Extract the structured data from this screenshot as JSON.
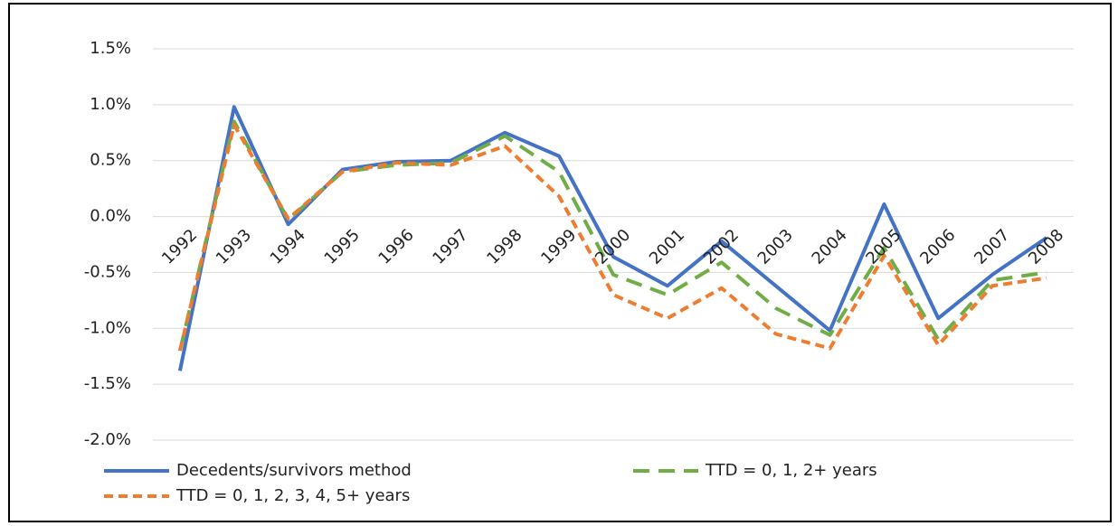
{
  "chart_data": {
    "type": "line",
    "categories": [
      "1992",
      "1993",
      "1994",
      "1995",
      "1996",
      "1997",
      "1998",
      "1999",
      "2000",
      "2001",
      "2002",
      "2003",
      "2004",
      "2005",
      "2006",
      "2007",
      "2008"
    ],
    "series": [
      {
        "name": "Decedents/survivors method",
        "color": "#4472c4",
        "dash": "solid",
        "values": [
          -1.38,
          0.98,
          -0.07,
          0.42,
          0.49,
          0.5,
          0.75,
          0.54,
          -0.36,
          -0.62,
          -0.22,
          -0.62,
          -1.02,
          0.11,
          -0.91,
          -0.52,
          -0.19
        ]
      },
      {
        "name": "TTD = 0, 1, 2+ years",
        "color": "#70ad47",
        "dash": "long",
        "values": [
          -1.2,
          0.85,
          -0.03,
          0.4,
          0.46,
          0.48,
          0.72,
          0.4,
          -0.52,
          -0.7,
          -0.41,
          -0.82,
          -1.06,
          -0.28,
          -1.1,
          -0.57,
          -0.5
        ]
      },
      {
        "name": "TTD = 0, 1, 2, 3, 4, 5+ years",
        "color": "#ed7d31",
        "dash": "short",
        "values": [
          -1.2,
          0.82,
          -0.02,
          0.4,
          0.48,
          0.46,
          0.63,
          0.18,
          -0.7,
          -0.91,
          -0.64,
          -1.05,
          -1.18,
          -0.35,
          -1.15,
          -0.62,
          -0.55
        ]
      }
    ],
    "ylim": [
      -2.0,
      1.5
    ],
    "yticks": [
      {
        "value": -2.0,
        "label": "-2.0%"
      },
      {
        "value": -1.5,
        "label": "-1.5%"
      },
      {
        "value": -1.0,
        "label": "-1.0%"
      },
      {
        "value": -0.5,
        "label": "-0.5%"
      },
      {
        "value": 0,
        "label": "0.0%"
      },
      {
        "value": 0.5,
        "label": "0.5%"
      },
      {
        "value": 1.0,
        "label": "1.0%"
      },
      {
        "value": 1.5,
        "label": "1.5%"
      }
    ],
    "grid": true,
    "legend": "bottom"
  }
}
